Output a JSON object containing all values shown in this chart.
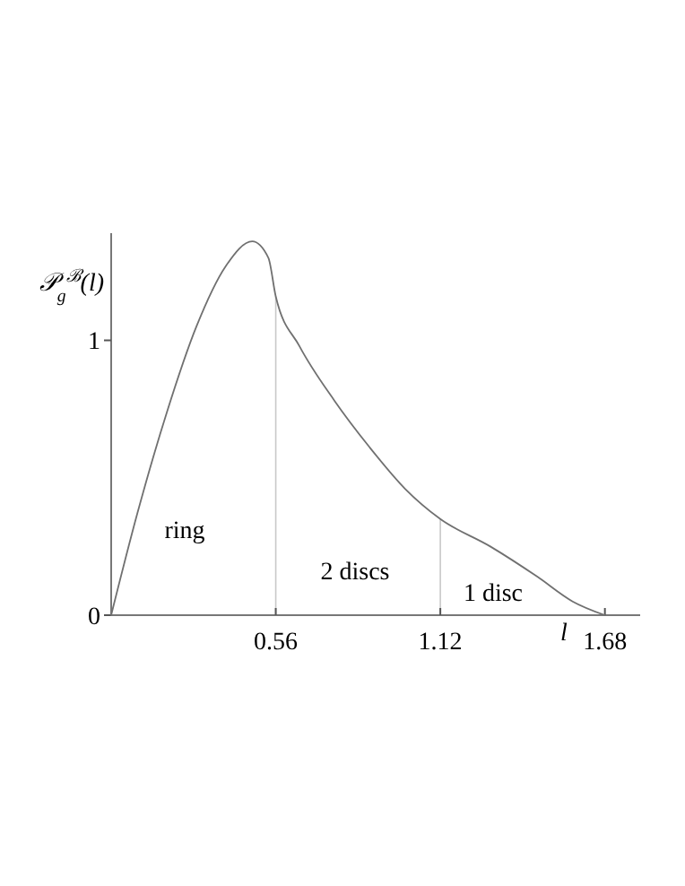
{
  "chart_data": {
    "type": "line",
    "ylabel": "𝒫$_{g}$$^{ℬ}$(l)",
    "xlabel": "l",
    "x": [
      0,
      0.089,
      0.19,
      0.29,
      0.39,
      0.48,
      0.535,
      0.56,
      0.64,
      0.76,
      0.88,
      1.0,
      1.12,
      1.29,
      1.45,
      1.57,
      1.68
    ],
    "series": [
      {
        "color": "#707070",
        "values": [
          0,
          0.37,
          0.74,
          1.05,
          1.27,
          1.36,
          1.3,
          1.16,
          0.98,
          0.78,
          0.61,
          0.46,
          0.35,
          0.25,
          0.14,
          0.05,
          0
        ]
      }
    ],
    "xlim": [
      0,
      1.8
    ],
    "ylim": [
      0,
      1.39
    ],
    "xticks": [
      {
        "value": 0,
        "label": null
      },
      0.56,
      1.12,
      1.68
    ],
    "yticks": [
      0,
      1
    ],
    "ref_lines": [
      {
        "axis": "x",
        "value": 0.56,
        "color": "#c8c8c8"
      },
      {
        "axis": "x",
        "value": 1.12,
        "color": "#c8c8c8"
      }
    ],
    "annotations": [
      "ring",
      "2 discs",
      "1 disc"
    ],
    "grid": false,
    "marker": "none",
    "line_style": "solid"
  }
}
